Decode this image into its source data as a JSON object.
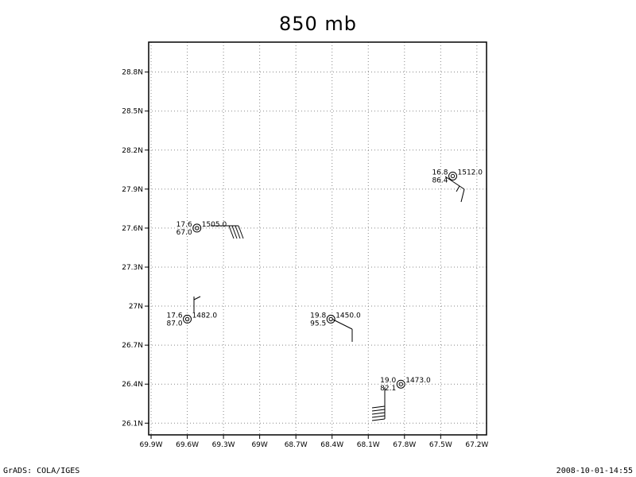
{
  "title": "850 mb",
  "footer": {
    "left": "GrADS: COLA/IGES",
    "right": "2008-10-01-14:55"
  },
  "map": {
    "x_ticks": [
      "69.9W",
      "69.6W",
      "69.3W",
      "69W",
      "68.7W",
      "68.4W",
      "68.1W",
      "67.8W",
      "67.5W",
      "67.2W"
    ],
    "x_values": [
      -69.9,
      -69.6,
      -69.3,
      -69.0,
      -68.7,
      -68.4,
      -68.1,
      -67.8,
      -67.5,
      -67.2
    ],
    "y_ticks": [
      "26.1N",
      "26.4N",
      "26.7N",
      "27N",
      "27.3N",
      "27.6N",
      "27.9N",
      "28.2N",
      "28.5N",
      "28.8N"
    ],
    "y_values": [
      26.1,
      26.4,
      26.7,
      27.0,
      27.3,
      27.6,
      27.9,
      28.2,
      28.5,
      28.8
    ],
    "lon_range": [
      -69.92,
      -67.12
    ],
    "lat_range": [
      26.01,
      29.03
    ],
    "grid": true
  },
  "stations": [
    {
      "lon": -69.52,
      "lat": 27.6,
      "temp": "17.6",
      "rh": "67.0",
      "height": "1505.0"
    },
    {
      "lon": -69.6,
      "lat": 26.9,
      "temp": "17.6",
      "rh": "87.0",
      "height": "1482.0"
    },
    {
      "lon": -68.41,
      "lat": 26.9,
      "temp": "19.8",
      "rh": "95.5",
      "height": "1450.0"
    },
    {
      "lon": -67.83,
      "lat": 26.4,
      "temp": "19.0",
      "rh": "82.1",
      "height": "1473.0"
    },
    {
      "lon": -67.4,
      "lat": 28.0,
      "temp": "16.8",
      "rh": "86.4",
      "height": "1512.0"
    }
  ]
}
